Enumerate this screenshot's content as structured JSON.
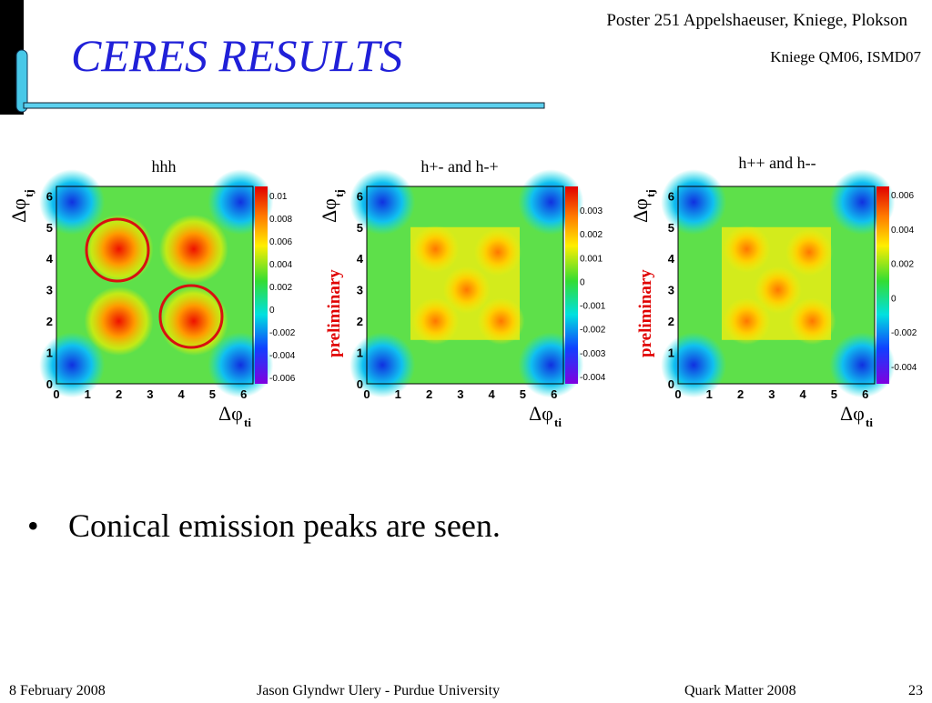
{
  "header": {
    "title": "CERES RESULTS",
    "refs": [
      "Poster 251 Appelshaeuser, Kniege, Plokson",
      "Kniege QM06, ISMD07"
    ]
  },
  "panels": [
    {
      "title": "hhh",
      "x_label": "Δφ",
      "x_sub": "ti",
      "y_label": "Δφ",
      "y_sub": "tj",
      "axis_ticks": [
        "0",
        "1",
        "2",
        "3",
        "4",
        "5",
        "6"
      ],
      "colorbar_ticks": [
        "0.01",
        "0.008",
        "0.006",
        "0.004",
        "0.002",
        "0",
        "-0.002",
        "-0.004",
        "-0.006"
      ]
    },
    {
      "title": "h+- and h-+",
      "x_label": "Δφ",
      "x_sub": "ti",
      "y_label": "Δφ",
      "y_sub": "tj",
      "axis_ticks": [
        "0",
        "1",
        "2",
        "3",
        "4",
        "5",
        "6"
      ],
      "colorbar_ticks": [
        "0.003",
        "0.002",
        "0.001",
        "0",
        "-0.001",
        "-0.002",
        "-0.003",
        "-0.004"
      ],
      "stamp": "preliminary"
    },
    {
      "title": "h++ and h--",
      "x_label": "Δφ",
      "x_sub": "ti",
      "y_label": "Δφ",
      "y_sub": "tj",
      "axis_ticks": [
        "0",
        "1",
        "2",
        "3",
        "4",
        "5",
        "6"
      ],
      "colorbar_ticks": [
        "0.006",
        "0.004",
        "0.002",
        "0",
        "-0.002",
        "-0.004"
      ],
      "stamp": "preliminary"
    }
  ],
  "bullet": "Conical emission peaks are seen.",
  "footer": {
    "date": "8 February 2008",
    "author": "Jason Glyndwr Ulery - Purdue University",
    "conference": "Quark Matter 2008",
    "page": "23"
  }
}
